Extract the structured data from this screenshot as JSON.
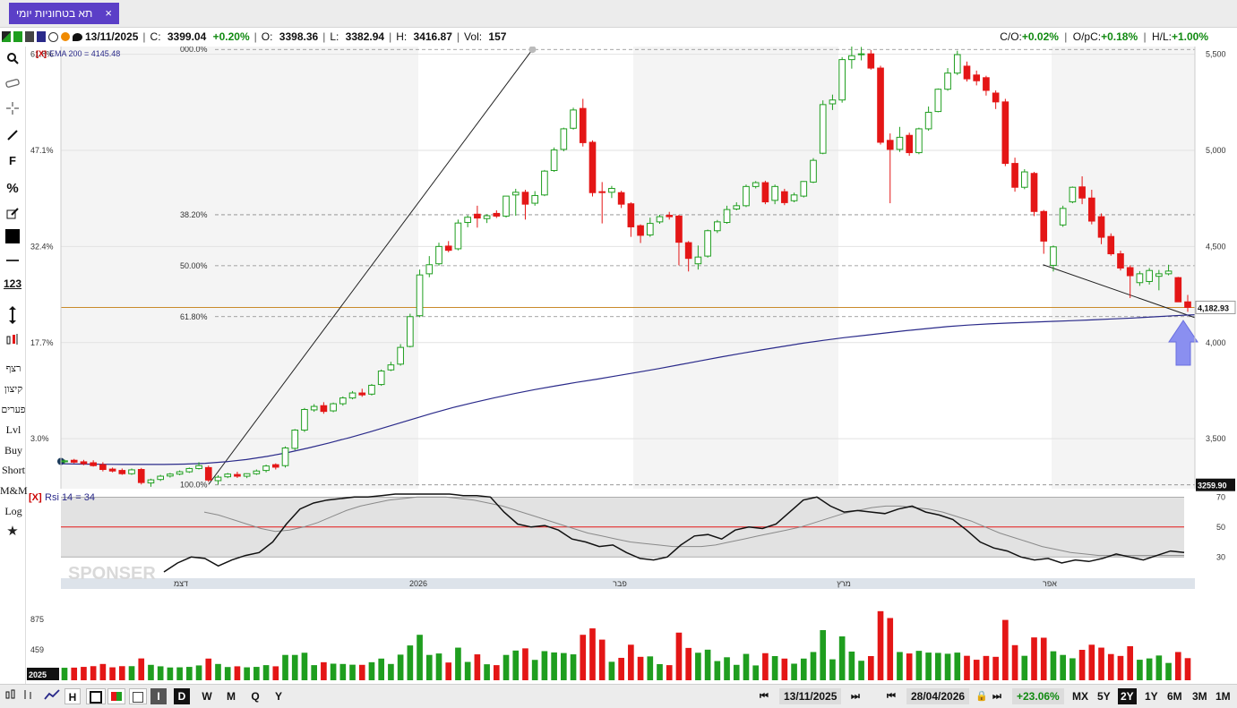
{
  "tab": {
    "title": "תא בטחוניות יומי",
    "close": "×"
  },
  "info": {
    "date": "13/11/2025",
    "c_label": "C:",
    "c_value": "3399.04",
    "c_change": "+0.20%",
    "o_label": "O:",
    "o_value": "3398.36",
    "l_label": "L:",
    "l_value": "3382.94",
    "h_label": "H:",
    "h_value": "3416.87",
    "vol_label": "Vol:",
    "vol_value": "157",
    "co_label": "C/O:",
    "co_value": "+0.02%",
    "opc_label": "O/pC:",
    "opc_value": "+0.18%",
    "hl_label": "H/L:",
    "hl_value": "+1.00%"
  },
  "left_toolbar": {
    "labels": [
      "רצף",
      "קיצון",
      "פערים",
      "Lvl",
      "Buy",
      "Short",
      "M&M",
      "Log"
    ],
    "f_label": "F",
    "pct_label": "%",
    "num_label": "123"
  },
  "bottom": {
    "start_date": "13/11/2025",
    "end_date": "28/04/2026",
    "range_change": "+23.06%",
    "intervals": [
      "MX",
      "5Y",
      "2Y",
      "1Y",
      "6M",
      "3M",
      "1M"
    ],
    "active_interval": "2Y",
    "chart_buttons": [
      "I",
      "D",
      "W",
      "M",
      "Q",
      "Y"
    ],
    "active_chart_button": "D",
    "h_label": "H"
  },
  "overlays": {
    "ema_label": "EMA 200 = 4145.48",
    "x_marker": "[X]",
    "rsi_label": "Rsi 14 = 34",
    "price_tag": "4,182.93",
    "low_tag": "3259.90",
    "watermark": "SPONSER",
    "year_tag": "2025"
  },
  "colors": {
    "up": "#1f9e1f",
    "down": "#e41616",
    "ema": "#2a2a8a",
    "accent": "#5b3fc7",
    "fib": "#888888",
    "hline": "#c98a2a"
  },
  "icons": [
    "search-icon",
    "eraser-icon",
    "crosshair-icon",
    "pen-icon",
    "edit-icon",
    "color-icon",
    "hline-icon",
    "vertical-bar-icon",
    "candle-icon",
    "star-icon"
  ],
  "chart_data": {
    "type": "candlestick",
    "price_axis": {
      "ticks": [
        3500,
        4000,
        4500,
        5000,
        5500
      ],
      "range": [
        3240,
        5540
      ]
    },
    "pct_axis": {
      "ticks": [
        "61.8%",
        "47.1%",
        "32.4%",
        "17.7%",
        "3.0%"
      ]
    },
    "time_axis": {
      "labels": [
        "דצמ",
        "2026",
        "פבר",
        "מרץ",
        "אפר"
      ]
    },
    "fib_levels": [
      {
        "label": "000.0%",
        "value": 5525
      },
      {
        "label": "38.20%",
        "value": 4665
      },
      {
        "label": "50.00%",
        "value": 4400
      },
      {
        "label": "61.80%",
        "value": 4135
      },
      {
        "label": "100.0%",
        "value": 3260
      }
    ],
    "hline_value": 4183,
    "candles": [
      {
        "o": 3380,
        "h": 3392,
        "l": 3370,
        "c": 3385
      },
      {
        "o": 3388,
        "h": 3395,
        "l": 3372,
        "c": 3378
      },
      {
        "o": 3380,
        "h": 3390,
        "l": 3362,
        "c": 3370
      },
      {
        "o": 3375,
        "h": 3388,
        "l": 3355,
        "c": 3360
      },
      {
        "o": 3365,
        "h": 3378,
        "l": 3330,
        "c": 3340
      },
      {
        "o": 3342,
        "h": 3350,
        "l": 3325,
        "c": 3332
      },
      {
        "o": 3335,
        "h": 3345,
        "l": 3312,
        "c": 3318
      },
      {
        "o": 3318,
        "h": 3345,
        "l": 3312,
        "c": 3338
      },
      {
        "o": 3340,
        "h": 3348,
        "l": 3262,
        "c": 3272
      },
      {
        "o": 3270,
        "h": 3292,
        "l": 3250,
        "c": 3286
      },
      {
        "o": 3288,
        "h": 3312,
        "l": 3280,
        "c": 3305
      },
      {
        "o": 3306,
        "h": 3322,
        "l": 3298,
        "c": 3316
      },
      {
        "o": 3316,
        "h": 3335,
        "l": 3310,
        "c": 3328
      },
      {
        "o": 3328,
        "h": 3350,
        "l": 3322,
        "c": 3345
      },
      {
        "o": 3345,
        "h": 3378,
        "l": 3340,
        "c": 3360
      },
      {
        "o": 3350,
        "h": 3360,
        "l": 3275,
        "c": 3285
      },
      {
        "o": 3282,
        "h": 3310,
        "l": 3262,
        "c": 3300
      },
      {
        "o": 3302,
        "h": 3322,
        "l": 3295,
        "c": 3316
      },
      {
        "o": 3314,
        "h": 3328,
        "l": 3296,
        "c": 3305
      },
      {
        "o": 3305,
        "h": 3320,
        "l": 3295,
        "c": 3318
      },
      {
        "o": 3318,
        "h": 3340,
        "l": 3312,
        "c": 3332
      },
      {
        "o": 3335,
        "h": 3365,
        "l": 3325,
        "c": 3358
      },
      {
        "o": 3365,
        "h": 3372,
        "l": 3340,
        "c": 3352
      },
      {
        "o": 3360,
        "h": 3460,
        "l": 3350,
        "c": 3452
      },
      {
        "o": 3450,
        "h": 3550,
        "l": 3440,
        "c": 3545
      },
      {
        "o": 3545,
        "h": 3660,
        "l": 3535,
        "c": 3652
      },
      {
        "o": 3650,
        "h": 3680,
        "l": 3640,
        "c": 3668
      },
      {
        "o": 3672,
        "h": 3690,
        "l": 3630,
        "c": 3642
      },
      {
        "o": 3645,
        "h": 3688,
        "l": 3638,
        "c": 3682
      },
      {
        "o": 3682,
        "h": 3720,
        "l": 3672,
        "c": 3712
      },
      {
        "o": 3712,
        "h": 3748,
        "l": 3705,
        "c": 3738
      },
      {
        "o": 3738,
        "h": 3760,
        "l": 3718,
        "c": 3728
      },
      {
        "o": 3732,
        "h": 3785,
        "l": 3725,
        "c": 3778
      },
      {
        "o": 3782,
        "h": 3860,
        "l": 3775,
        "c": 3852
      },
      {
        "o": 3858,
        "h": 3900,
        "l": 3852,
        "c": 3884
      },
      {
        "o": 3888,
        "h": 3992,
        "l": 3880,
        "c": 3975
      },
      {
        "o": 3980,
        "h": 4150,
        "l": 3975,
        "c": 4135
      },
      {
        "o": 4140,
        "h": 4380,
        "l": 4132,
        "c": 4352
      },
      {
        "o": 4358,
        "h": 4450,
        "l": 4340,
        "c": 4405
      },
      {
        "o": 4410,
        "h": 4520,
        "l": 4400,
        "c": 4500
      },
      {
        "o": 4502,
        "h": 4528,
        "l": 4470,
        "c": 4480
      },
      {
        "o": 4488,
        "h": 4640,
        "l": 4480,
        "c": 4622
      },
      {
        "o": 4625,
        "h": 4662,
        "l": 4600,
        "c": 4652
      },
      {
        "o": 4668,
        "h": 4712,
        "l": 4598,
        "c": 4648
      },
      {
        "o": 4645,
        "h": 4668,
        "l": 4622,
        "c": 4660
      },
      {
        "o": 4672,
        "h": 4688,
        "l": 4648,
        "c": 4658
      },
      {
        "o": 4658,
        "h": 4760,
        "l": 4650,
        "c": 4762
      },
      {
        "o": 4768,
        "h": 4800,
        "l": 4660,
        "c": 4782
      },
      {
        "o": 4782,
        "h": 4795,
        "l": 4640,
        "c": 4720
      },
      {
        "o": 4725,
        "h": 4788,
        "l": 4712,
        "c": 4765
      },
      {
        "o": 4768,
        "h": 4898,
        "l": 4762,
        "c": 4892
      },
      {
        "o": 4895,
        "h": 5015,
        "l": 4888,
        "c": 5002
      },
      {
        "o": 5005,
        "h": 5118,
        "l": 4995,
        "c": 5112
      },
      {
        "o": 5115,
        "h": 5222,
        "l": 5108,
        "c": 5210
      },
      {
        "o": 5218,
        "h": 5268,
        "l": 5020,
        "c": 5040
      },
      {
        "o": 5042,
        "h": 5052,
        "l": 4760,
        "c": 4780
      },
      {
        "o": 4785,
        "h": 4835,
        "l": 4620,
        "c": 4782
      },
      {
        "o": 4782,
        "h": 4815,
        "l": 4752,
        "c": 4802
      },
      {
        "o": 4780,
        "h": 4790,
        "l": 4700,
        "c": 4720
      },
      {
        "o": 4722,
        "h": 4730,
        "l": 4550,
        "c": 4602
      },
      {
        "o": 4608,
        "h": 4615,
        "l": 4518,
        "c": 4558
      },
      {
        "o": 4560,
        "h": 4650,
        "l": 4550,
        "c": 4620
      },
      {
        "o": 4628,
        "h": 4665,
        "l": 4618,
        "c": 4655
      },
      {
        "o": 4662,
        "h": 4680,
        "l": 4640,
        "c": 4655
      },
      {
        "o": 4658,
        "h": 4665,
        "l": 4402,
        "c": 4522
      },
      {
        "o": 4520,
        "h": 4528,
        "l": 4370,
        "c": 4438
      },
      {
        "o": 4410,
        "h": 4505,
        "l": 4380,
        "c": 4445
      },
      {
        "o": 4450,
        "h": 4588,
        "l": 4442,
        "c": 4582
      },
      {
        "o": 4582,
        "h": 4638,
        "l": 4570,
        "c": 4628
      },
      {
        "o": 4625,
        "h": 4712,
        "l": 4618,
        "c": 4692
      },
      {
        "o": 4695,
        "h": 4730,
        "l": 4688,
        "c": 4712
      },
      {
        "o": 4712,
        "h": 4822,
        "l": 4705,
        "c": 4812
      },
      {
        "o": 4812,
        "h": 4840,
        "l": 4802,
        "c": 4832
      },
      {
        "o": 4832,
        "h": 4842,
        "l": 4720,
        "c": 4732
      },
      {
        "o": 4740,
        "h": 4822,
        "l": 4720,
        "c": 4812
      },
      {
        "o": 4785,
        "h": 4800,
        "l": 4715,
        "c": 4728
      },
      {
        "o": 4738,
        "h": 4780,
        "l": 4730,
        "c": 4768
      },
      {
        "o": 4762,
        "h": 4840,
        "l": 4755,
        "c": 4838
      },
      {
        "o": 4835,
        "h": 4960,
        "l": 4830,
        "c": 4948
      },
      {
        "o": 4985,
        "h": 5260,
        "l": 4980,
        "c": 5238
      },
      {
        "o": 5242,
        "h": 5290,
        "l": 5210,
        "c": 5262
      },
      {
        "o": 5262,
        "h": 5485,
        "l": 5248,
        "c": 5472
      },
      {
        "o": 5472,
        "h": 5558,
        "l": 5425,
        "c": 5492
      },
      {
        "o": 5498,
        "h": 5538,
        "l": 5468,
        "c": 5502
      },
      {
        "o": 5502,
        "h": 5522,
        "l": 5420,
        "c": 5428
      },
      {
        "o": 5428,
        "h": 5440,
        "l": 5030,
        "c": 5042
      },
      {
        "o": 5052,
        "h": 5088,
        "l": 4725,
        "c": 5005
      },
      {
        "o": 5005,
        "h": 5122,
        "l": 4992,
        "c": 5068
      },
      {
        "o": 5078,
        "h": 5092,
        "l": 4972,
        "c": 4988
      },
      {
        "o": 4988,
        "h": 5118,
        "l": 4980,
        "c": 5112
      },
      {
        "o": 5112,
        "h": 5228,
        "l": 5102,
        "c": 5198
      },
      {
        "o": 5202,
        "h": 5322,
        "l": 5198,
        "c": 5318
      },
      {
        "o": 5318,
        "h": 5428,
        "l": 5310,
        "c": 5402
      },
      {
        "o": 5402,
        "h": 5518,
        "l": 5392,
        "c": 5498
      },
      {
        "o": 5438,
        "h": 5462,
        "l": 5358,
        "c": 5372
      },
      {
        "o": 5392,
        "h": 5415,
        "l": 5338,
        "c": 5362
      },
      {
        "o": 5378,
        "h": 5388,
        "l": 5285,
        "c": 5312
      },
      {
        "o": 5298,
        "h": 5312,
        "l": 5215,
        "c": 5252
      },
      {
        "o": 5252,
        "h": 5268,
        "l": 4918,
        "c": 4932
      },
      {
        "o": 4932,
        "h": 4962,
        "l": 4785,
        "c": 4808
      },
      {
        "o": 4808,
        "h": 4902,
        "l": 4798,
        "c": 4888
      },
      {
        "o": 4880,
        "h": 4888,
        "l": 4658,
        "c": 4682
      },
      {
        "o": 4682,
        "h": 4690,
        "l": 4462,
        "c": 4528
      },
      {
        "o": 4402,
        "h": 4505,
        "l": 4370,
        "c": 4498
      },
      {
        "o": 4612,
        "h": 4712,
        "l": 4602,
        "c": 4698
      },
      {
        "o": 4732,
        "h": 4812,
        "l": 4725,
        "c": 4808
      },
      {
        "o": 4810,
        "h": 4865,
        "l": 4720,
        "c": 4752
      },
      {
        "o": 4752,
        "h": 4795,
        "l": 4615,
        "c": 4632
      },
      {
        "o": 4655,
        "h": 4672,
        "l": 4512,
        "c": 4548
      },
      {
        "o": 4552,
        "h": 4568,
        "l": 4452,
        "c": 4462
      },
      {
        "o": 4462,
        "h": 4478,
        "l": 4375,
        "c": 4388
      },
      {
        "o": 4390,
        "h": 4402,
        "l": 4232,
        "c": 4348
      },
      {
        "o": 4312,
        "h": 4372,
        "l": 4295,
        "c": 4358
      },
      {
        "o": 4318,
        "h": 4388,
        "l": 4302,
        "c": 4375
      },
      {
        "o": 4345,
        "h": 4378,
        "l": 4272,
        "c": 4358
      },
      {
        "o": 4358,
        "h": 4405,
        "l": 4350,
        "c": 4372
      },
      {
        "o": 4338,
        "h": 4342,
        "l": 4212,
        "c": 4212
      },
      {
        "o": 4212,
        "h": 4248,
        "l": 4160,
        "c": 4183
      }
    ],
    "ema200": [
      3370,
      3368,
      3367,
      3366,
      3366,
      3366,
      3368,
      3372,
      3380,
      3392,
      3408,
      3428,
      3452,
      3478,
      3506,
      3536,
      3568,
      3600,
      3632,
      3662,
      3688,
      3712,
      3735,
      3756,
      3775,
      3793,
      3810,
      3828,
      3846,
      3865,
      3885,
      3905,
      3925,
      3944,
      3962,
      3980,
      3997,
      4012,
      4026,
      4038,
      4050,
      4062,
      4073,
      4083,
      4091,
      4097,
      4102,
      4106,
      4110,
      4114,
      4118,
      4123,
      4128,
      4134,
      4140,
      4145
    ],
    "rsi": {
      "levels": [
        70,
        50,
        30
      ],
      "band": [
        30,
        70
      ],
      "series": [
        20,
        26,
        30,
        29,
        24,
        28,
        31,
        33,
        40,
        52,
        62,
        66,
        68,
        69,
        70,
        70,
        71,
        72,
        72,
        72,
        72,
        72,
        71,
        71,
        70,
        60,
        52,
        50,
        51,
        48,
        42,
        40,
        37,
        38,
        33,
        29,
        28,
        30,
        38,
        44,
        45,
        42,
        48,
        50,
        49,
        52,
        60,
        68,
        70,
        64,
        60,
        61,
        60,
        59,
        62,
        64,
        60,
        58,
        55,
        48,
        40,
        36,
        34,
        30,
        28,
        29,
        26,
        28,
        27,
        29,
        32,
        30,
        28,
        31,
        34,
        33
      ],
      "signal": [
        60,
        58,
        55,
        52,
        49,
        47,
        48,
        50,
        53,
        57,
        61,
        64,
        66,
        68,
        69,
        70,
        70,
        70,
        69,
        68,
        66,
        64,
        61,
        58,
        55,
        52,
        49,
        46,
        44,
        42,
        40,
        39,
        38,
        37,
        37,
        37,
        38,
        40,
        42,
        44,
        46,
        48,
        50,
        53,
        56,
        59,
        61,
        63,
        64,
        64,
        63,
        62,
        60,
        57,
        54,
        50,
        46,
        43,
        40,
        37,
        35,
        33,
        32,
        31,
        31,
        31,
        31,
        31,
        31,
        31
      ]
    },
    "volume": {
      "ticks": [
        "875",
        "459"
      ]
    }
  }
}
